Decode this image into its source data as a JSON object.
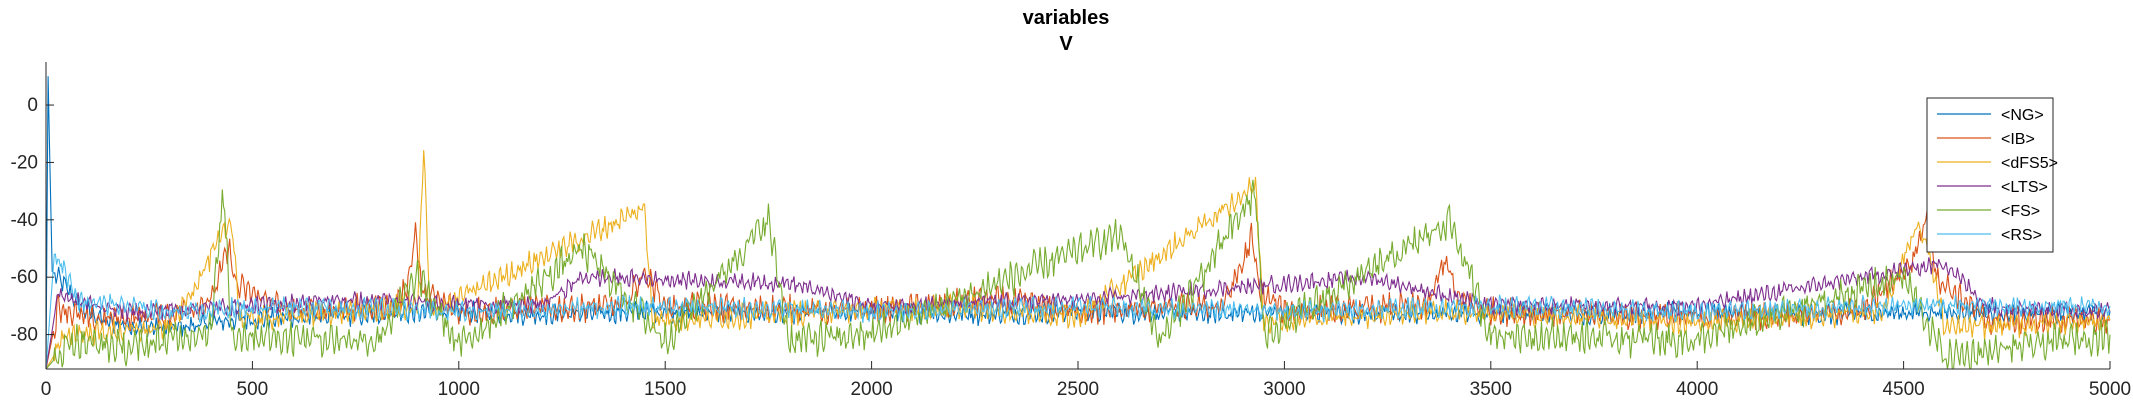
{
  "chart_data": {
    "type": "line",
    "title": "variables",
    "subtitle": "V",
    "xlabel": "",
    "ylabel": "",
    "xlim": [
      0,
      5000
    ],
    "ylim": [
      -92,
      15
    ],
    "x_ticks": [
      0,
      500,
      1000,
      1500,
      2000,
      2500,
      3000,
      3500,
      4000,
      4500,
      5000
    ],
    "y_ticks": [
      0,
      -20,
      -40,
      -60,
      -80
    ],
    "grid": false,
    "legend_position": "top-right",
    "series": [
      {
        "name": "<NG>",
        "color": "#0072BD",
        "points": [
          [
            0,
            -92
          ],
          [
            5,
            10
          ],
          [
            15,
            -58
          ],
          [
            40,
            -62
          ],
          [
            80,
            -70
          ],
          [
            150,
            -76
          ],
          [
            300,
            -78
          ],
          [
            450,
            -75
          ],
          [
            600,
            -74
          ],
          [
            800,
            -73
          ],
          [
            1000,
            -72
          ],
          [
            1200,
            -73
          ],
          [
            1500,
            -72
          ],
          [
            1800,
            -73
          ],
          [
            2000,
            -72
          ],
          [
            2300,
            -73
          ],
          [
            2500,
            -72
          ],
          [
            2800,
            -73
          ],
          [
            3000,
            -72
          ],
          [
            3300,
            -73
          ],
          [
            3500,
            -72
          ],
          [
            3800,
            -73
          ],
          [
            4000,
            -72
          ],
          [
            4300,
            -73
          ],
          [
            4600,
            -72
          ],
          [
            4800,
            -73
          ],
          [
            5000,
            -72
          ]
        ]
      },
      {
        "name": "<IB>",
        "color": "#D95319",
        "points": [
          [
            0,
            -92
          ],
          [
            30,
            -70
          ],
          [
            100,
            -75
          ],
          [
            300,
            -73
          ],
          [
            400,
            -68
          ],
          [
            430,
            -55
          ],
          [
            445,
            -50
          ],
          [
            460,
            -63
          ],
          [
            600,
            -72
          ],
          [
            850,
            -70
          ],
          [
            880,
            -60
          ],
          [
            895,
            -43
          ],
          [
            910,
            -65
          ],
          [
            1000,
            -72
          ],
          [
            1400,
            -70
          ],
          [
            1450,
            -58
          ],
          [
            1500,
            -70
          ],
          [
            2000,
            -72
          ],
          [
            2300,
            -68
          ],
          [
            2500,
            -72
          ],
          [
            2850,
            -70
          ],
          [
            2900,
            -55
          ],
          [
            2920,
            -46
          ],
          [
            2940,
            -65
          ],
          [
            3000,
            -72
          ],
          [
            3350,
            -70
          ],
          [
            3390,
            -53
          ],
          [
            3420,
            -68
          ],
          [
            3500,
            -72
          ],
          [
            4000,
            -74
          ],
          [
            4400,
            -72
          ],
          [
            4520,
            -55
          ],
          [
            4560,
            -37
          ],
          [
            4580,
            -60
          ],
          [
            4700,
            -75
          ],
          [
            5000,
            -75
          ]
        ]
      },
      {
        "name": "<dFS5>",
        "color": "#EDB120",
        "points": [
          [
            0,
            -92
          ],
          [
            50,
            -80
          ],
          [
            300,
            -78
          ],
          [
            450,
            -40
          ],
          [
            470,
            -75
          ],
          [
            900,
            -70
          ],
          [
            915,
            -15
          ],
          [
            930,
            -72
          ],
          [
            1450,
            -36
          ],
          [
            1470,
            -75
          ],
          [
            2200,
            -70
          ],
          [
            2500,
            -74
          ],
          [
            2930,
            -28
          ],
          [
            2950,
            -75
          ],
          [
            3400,
            -72
          ],
          [
            4000,
            -76
          ],
          [
            4450,
            -72
          ],
          [
            4530,
            -42
          ],
          [
            4560,
            -50
          ],
          [
            4600,
            -78
          ],
          [
            5000,
            -75
          ]
        ]
      },
      {
        "name": "<LTS>",
        "color": "#7E2F8E",
        "points": [
          [
            0,
            -92
          ],
          [
            30,
            -65
          ],
          [
            60,
            -68
          ],
          [
            200,
            -72
          ],
          [
            500,
            -70
          ],
          [
            700,
            -68
          ],
          [
            1200,
            -70
          ],
          [
            1300,
            -60
          ],
          [
            1800,
            -62
          ],
          [
            2000,
            -70
          ],
          [
            2500,
            -68
          ],
          [
            3200,
            -60
          ],
          [
            3500,
            -70
          ],
          [
            4000,
            -70
          ],
          [
            4600,
            -55
          ],
          [
            4700,
            -70
          ],
          [
            5000,
            -72
          ]
        ]
      },
      {
        "name": "<FS>",
        "color": "#77AC30",
        "points": [
          [
            0,
            -92
          ],
          [
            60,
            -82
          ],
          [
            200,
            -85
          ],
          [
            400,
            -78
          ],
          [
            430,
            -30
          ],
          [
            450,
            -80
          ],
          [
            800,
            -82
          ],
          [
            900,
            -60
          ],
          [
            1000,
            -84
          ],
          [
            1300,
            -50
          ],
          [
            1500,
            -82
          ],
          [
            1750,
            -40
          ],
          [
            1800,
            -82
          ],
          [
            2000,
            -80
          ],
          [
            2600,
            -45
          ],
          [
            2700,
            -82
          ],
          [
            2930,
            -30
          ],
          [
            2950,
            -80
          ],
          [
            3300,
            -50
          ],
          [
            3400,
            -40
          ],
          [
            3500,
            -80
          ],
          [
            4000,
            -82
          ],
          [
            4500,
            -60
          ],
          [
            4600,
            -88
          ],
          [
            5000,
            -80
          ]
        ]
      },
      {
        "name": "<RS>",
        "color": "#4DBEEE",
        "points": [
          [
            0,
            -92
          ],
          [
            20,
            -52
          ],
          [
            40,
            -56
          ],
          [
            80,
            -68
          ],
          [
            300,
            -72
          ],
          [
            600,
            -70
          ],
          [
            1000,
            -72
          ],
          [
            1500,
            -70
          ],
          [
            2000,
            -72
          ],
          [
            2500,
            -70
          ],
          [
            3000,
            -72
          ],
          [
            3500,
            -70
          ],
          [
            4000,
            -72
          ],
          [
            4500,
            -70
          ],
          [
            5000,
            -70
          ]
        ]
      }
    ]
  }
}
